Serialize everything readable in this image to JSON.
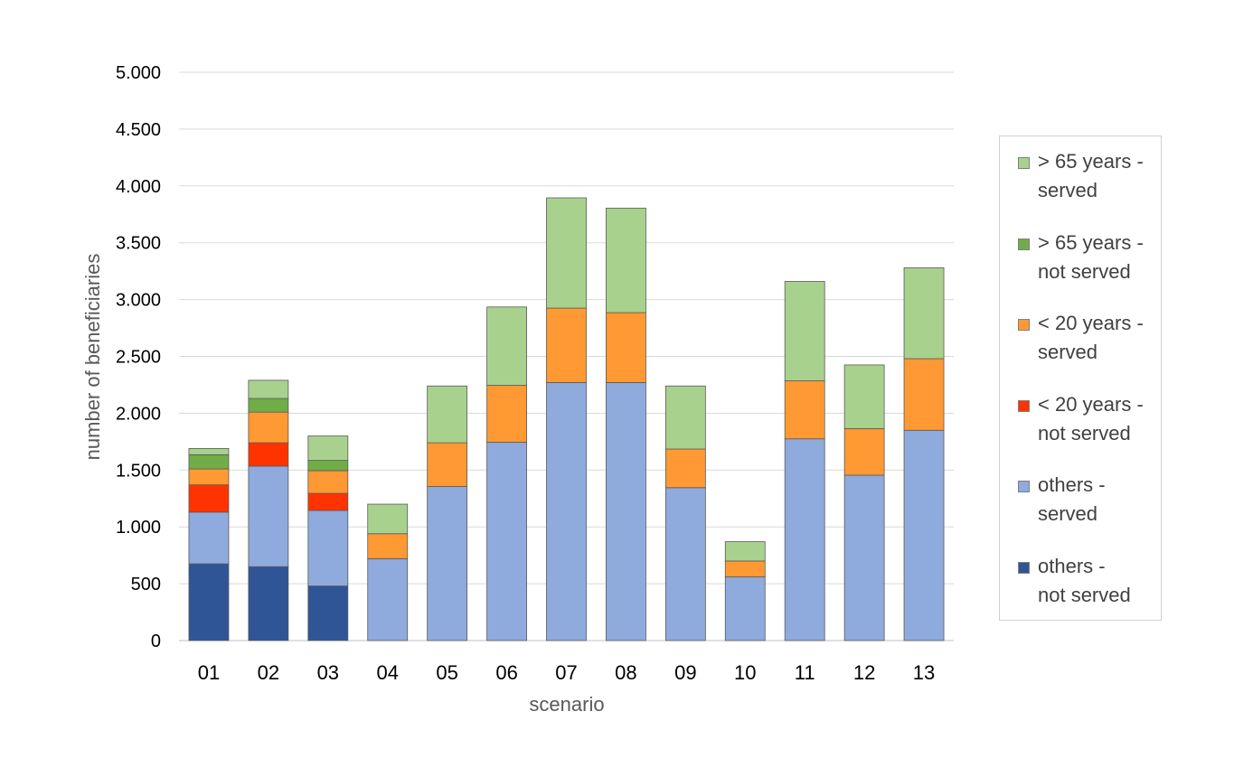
{
  "chart_data": {
    "type": "bar",
    "stacked": true,
    "title": "",
    "xlabel": "scenario",
    "ylabel": "number of beneficiaries",
    "ylim": [
      0,
      5000
    ],
    "yticks": [
      0,
      500,
      1000,
      1500,
      2000,
      2500,
      3000,
      3500,
      4000,
      4500,
      5000
    ],
    "ytick_labels": [
      "0",
      "500",
      "1.000",
      "1.500",
      "2.000",
      "2.500",
      "3.000",
      "3.500",
      "4.000",
      "4.500",
      "5.000"
    ],
    "grid": "horizontal",
    "legend_position": "right",
    "categories": [
      "01",
      "02",
      "03",
      "04",
      "05",
      "06",
      "07",
      "08",
      "09",
      "10",
      "11",
      "12",
      "13"
    ],
    "series": [
      {
        "name": "others  -\nnot served",
        "color": "#2f5597",
        "values": [
          675,
          650,
          480,
          0,
          0,
          0,
          0,
          0,
          0,
          0,
          0,
          0,
          0
        ]
      },
      {
        "name": "others  -\nserved",
        "color": "#8faadc",
        "values": [
          455,
          885,
          665,
          720,
          1355,
          1745,
          2270,
          2270,
          1345,
          560,
          1775,
          1455,
          1850
        ]
      },
      {
        "name": "< 20 years -\nnot served",
        "color": "#ff3300",
        "values": [
          240,
          205,
          150,
          0,
          0,
          0,
          0,
          0,
          0,
          0,
          0,
          0,
          0
        ]
      },
      {
        "name": "< 20 years -\nserved",
        "color": "#ff9933",
        "values": [
          140,
          270,
          200,
          220,
          385,
          500,
          655,
          615,
          340,
          140,
          510,
          410,
          630
        ]
      },
      {
        "name": "> 65 years -\nnot served",
        "color": "#70ad47",
        "values": [
          125,
          120,
          90,
          0,
          0,
          0,
          0,
          0,
          0,
          0,
          0,
          0,
          0
        ]
      },
      {
        "name": "> 65 years -\nserved",
        "color": "#a9d18e",
        "values": [
          55,
          160,
          215,
          260,
          500,
          690,
          970,
          920,
          555,
          170,
          875,
          560,
          800
        ]
      }
    ]
  }
}
